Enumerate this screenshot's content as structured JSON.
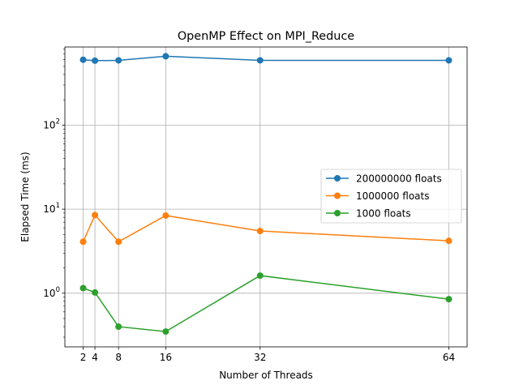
{
  "chart_data": {
    "type": "line",
    "title": "OpenMP Effect on MPI_Reduce",
    "xlabel": "Number of Threads",
    "ylabel": "Elapsed Time (ms)",
    "yscale": "log",
    "ylim": [
      0.23,
      850
    ],
    "xlim": [
      -1.1,
      67.1
    ],
    "x": [
      2,
      4,
      8,
      16,
      32,
      64
    ],
    "xticks": [
      "2",
      "4",
      "8",
      "16",
      "32",
      "64"
    ],
    "yticks": [
      {
        "value": 1,
        "base": "10",
        "exp": "0"
      },
      {
        "value": 10,
        "base": "10",
        "exp": "1"
      },
      {
        "value": 100,
        "base": "10",
        "exp": "2"
      }
    ],
    "grid": true,
    "legend_position": "center-right",
    "series": [
      {
        "name": "200000000 floats",
        "color": "#1f77b4",
        "values": [
          600,
          585,
          590,
          660,
          590,
          590
        ]
      },
      {
        "name": "1000000 floats",
        "color": "#ff7f0e",
        "values": [
          4.1,
          8.5,
          4.1,
          8.4,
          5.5,
          4.2
        ]
      },
      {
        "name": "1000 floats",
        "color": "#2ca02c",
        "values": [
          1.15,
          1.02,
          0.4,
          0.35,
          1.62,
          0.85
        ]
      }
    ]
  }
}
